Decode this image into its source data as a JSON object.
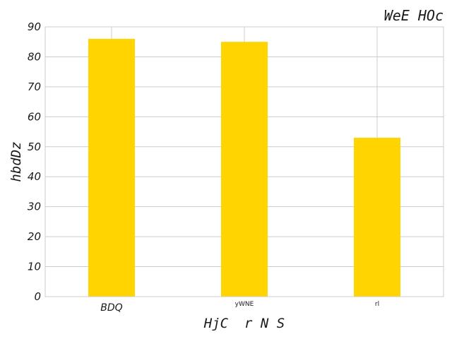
{
  "chart_data": {
    "type": "bar",
    "title": "WeE HOc",
    "xlabel": "HjC  r N S",
    "ylabel": "hbdDz",
    "categories": [
      "BDQ",
      "yWNE",
      "rl"
    ],
    "values": [
      86,
      85,
      53
    ],
    "ylim": [
      0,
      90
    ],
    "yticks": [
      0,
      10,
      20,
      30,
      40,
      50,
      60,
      70,
      80,
      90
    ],
    "grid": true,
    "bar_color": "#ffd400",
    "grid_color": "#cccccc"
  }
}
